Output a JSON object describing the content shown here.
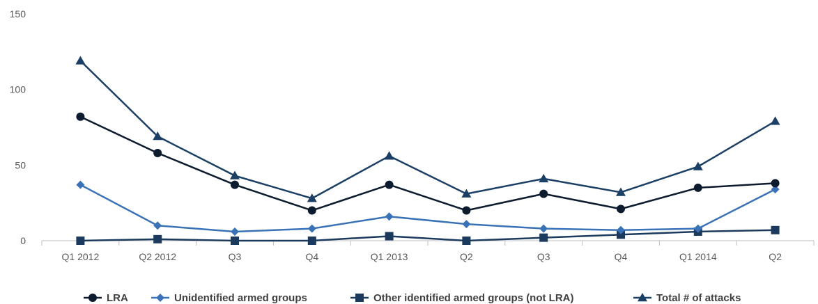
{
  "chart_data": {
    "type": "line",
    "title": "",
    "xlabel": "",
    "ylabel": "",
    "categories": [
      "Q1 2012",
      "Q2 2012",
      "Q3",
      "Q4",
      "Q1 2013",
      "Q2",
      "Q3",
      "Q4",
      "Q1 2014",
      "Q2"
    ],
    "ylim": [
      0,
      150
    ],
    "yticks": [
      0,
      50,
      100,
      150
    ],
    "grid": false,
    "legend_position": "bottom",
    "series": [
      {
        "name": "LRA",
        "marker": "circle",
        "color": "#0d1b2e",
        "values": [
          82,
          58,
          37,
          20,
          37,
          20,
          31,
          21,
          35,
          38
        ]
      },
      {
        "name": "Unidentified armed groups",
        "marker": "diamond",
        "color": "#3a72b8",
        "values": [
          37,
          10,
          6,
          8,
          16,
          11,
          8,
          7,
          8,
          34
        ]
      },
      {
        "name": "Other identified armed groups (not LRA)",
        "marker": "square",
        "color": "#1b3a5e",
        "values": [
          0,
          1,
          0,
          0,
          3,
          0,
          2,
          4,
          6,
          7
        ]
      },
      {
        "name": "Total # of attacks",
        "marker": "triangle",
        "color": "#1c3f66",
        "values": [
          119,
          69,
          43,
          28,
          56,
          31,
          41,
          32,
          49,
          79
        ]
      }
    ]
  }
}
